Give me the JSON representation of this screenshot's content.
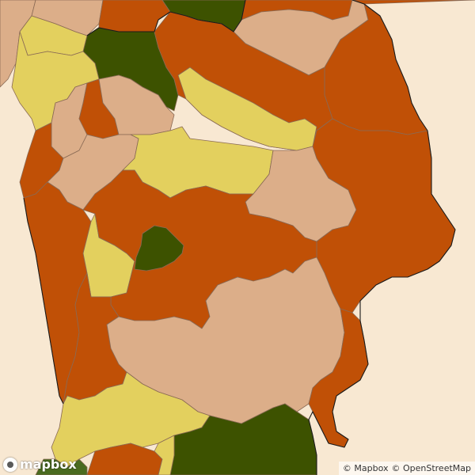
{
  "map": {
    "colors": {
      "background": "#f8e8d2",
      "dark_green": "#3d5200",
      "olive_green": "#4a6b1f",
      "orange": "#c05006",
      "tan": "#dcae89",
      "yellow": "#e3d05e",
      "border": "#8a6a55"
    },
    "logo": {
      "text": "mapbox"
    },
    "attribution": {
      "mapbox": "© Mapbox",
      "osm": "© OpenStreetMap"
    }
  }
}
